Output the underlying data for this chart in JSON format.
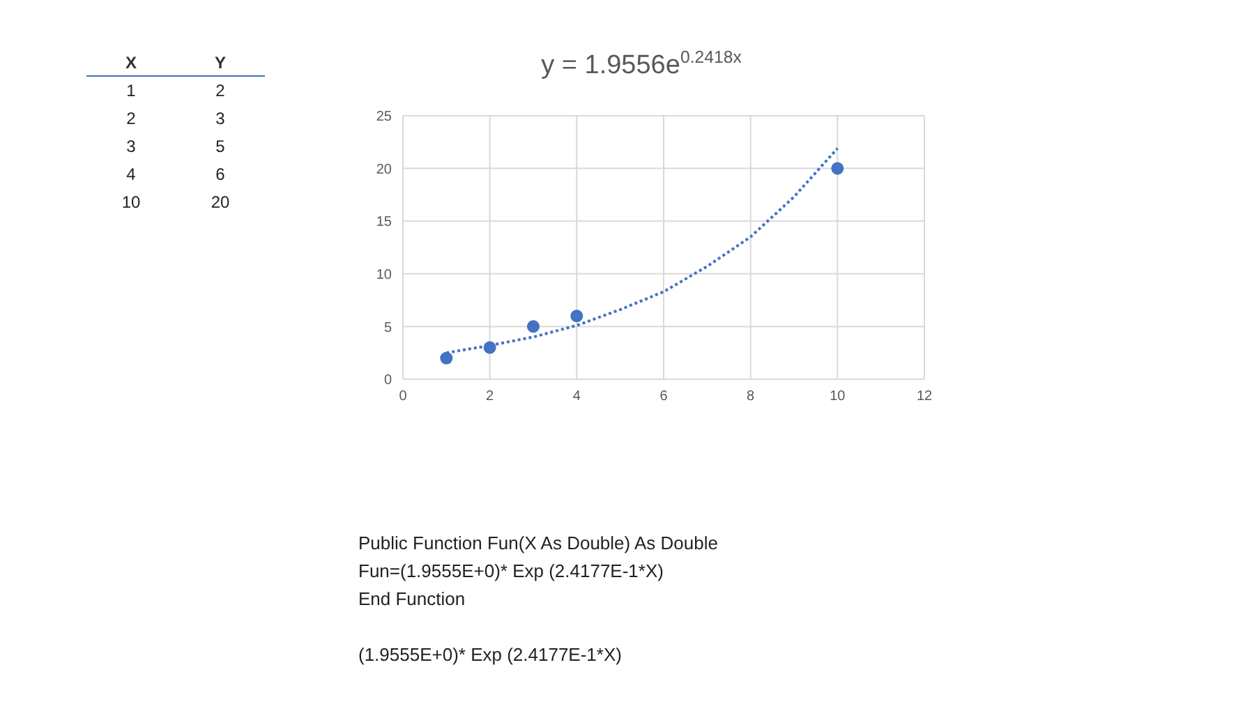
{
  "chart_data": {
    "type": "scatter",
    "title": "y = 1.9556e$^{0.2418x}$",
    "series": [
      {
        "color": "#4472c4",
        "x": [
          1,
          2,
          3,
          4,
          10
        ],
        "values": [
          2,
          3,
          5,
          6,
          20
        ],
        "marker": "circle"
      },
      {
        "type": "line",
        "color": "#4472c4",
        "x": [
          1,
          2,
          3,
          4,
          5,
          6,
          7,
          8,
          9,
          10
        ],
        "values": [
          2.5,
          3.2,
          4.0,
          5.1,
          6.6,
          8.3,
          10.7,
          13.5,
          17.3,
          21.9
        ],
        "line_style": "dotted",
        "marker": "none"
      }
    ],
    "xlim": [
      0,
      12
    ],
    "xticks": [
      0,
      2,
      4,
      6,
      8,
      10,
      12
    ],
    "ylim": [
      0,
      25
    ],
    "yticks": [
      0,
      5,
      10,
      15,
      20,
      25
    ],
    "grid": true,
    "legend": false,
    "annotations": [
      "X",
      "Y",
      "1",
      "2",
      "2",
      "3",
      "3",
      "5",
      "4",
      "6",
      "10",
      "20",
      "Public Function Fun(X As Double) As Double",
      "Fun=(1.9555E+0)* Exp (2.4177E-1*X)",
      "End Function",
      "(1.9555E+0)* Exp (2.4177E-1*X)"
    ]
  }
}
